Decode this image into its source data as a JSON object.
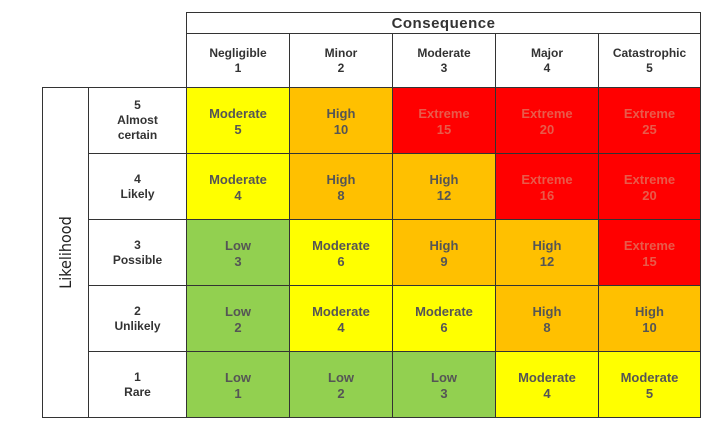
{
  "header": {
    "title": "Consequence",
    "columns": [
      {
        "label": "Negligible",
        "number": 1
      },
      {
        "label": "Minor",
        "number": 2
      },
      {
        "label": "Moderate",
        "number": 3
      },
      {
        "label": "Major",
        "number": 4
      },
      {
        "label": "Catastrophic",
        "number": 5
      }
    ]
  },
  "axis_label": "Likelihood",
  "rating_styles": {
    "Low": {
      "fill": "#92d050",
      "text": "#555555"
    },
    "Moderate": {
      "fill": "#ffff00",
      "text": "#555555"
    },
    "High": {
      "fill": "#ffc000",
      "text": "#555555"
    },
    "Extreme": {
      "fill": "#ff0000",
      "text": "#e85a4a"
    }
  },
  "rows": [
    {
      "number": 5,
      "label": "Almost certain",
      "cells": [
        {
          "rating": "Moderate",
          "score": 5
        },
        {
          "rating": "High",
          "score": 10
        },
        {
          "rating": "Extreme",
          "score": 15
        },
        {
          "rating": "Extreme",
          "score": 20
        },
        {
          "rating": "Extreme",
          "score": 25
        }
      ]
    },
    {
      "number": 4,
      "label": "Likely",
      "cells": [
        {
          "rating": "Moderate",
          "score": 4
        },
        {
          "rating": "High",
          "score": 8
        },
        {
          "rating": "High",
          "score": 12
        },
        {
          "rating": "Extreme",
          "score": 16
        },
        {
          "rating": "Extreme",
          "score": 20
        }
      ]
    },
    {
      "number": 3,
      "label": "Possible",
      "cells": [
        {
          "rating": "Low",
          "score": 3
        },
        {
          "rating": "Moderate",
          "score": 6
        },
        {
          "rating": "High",
          "score": 9
        },
        {
          "rating": "High",
          "score": 12
        },
        {
          "rating": "Extreme",
          "score": 15
        }
      ]
    },
    {
      "number": 2,
      "label": "Unlikely",
      "cells": [
        {
          "rating": "Low",
          "score": 2
        },
        {
          "rating": "Moderate",
          "score": 4
        },
        {
          "rating": "Moderate",
          "score": 6
        },
        {
          "rating": "High",
          "score": 8
        },
        {
          "rating": "High",
          "score": 10
        }
      ]
    },
    {
      "number": 1,
      "label": "Rare",
      "cells": [
        {
          "rating": "Low",
          "score": 1
        },
        {
          "rating": "Low",
          "score": 2
        },
        {
          "rating": "Low",
          "score": 3
        },
        {
          "rating": "Moderate",
          "score": 4
        },
        {
          "rating": "Moderate",
          "score": 5
        }
      ]
    }
  ]
}
